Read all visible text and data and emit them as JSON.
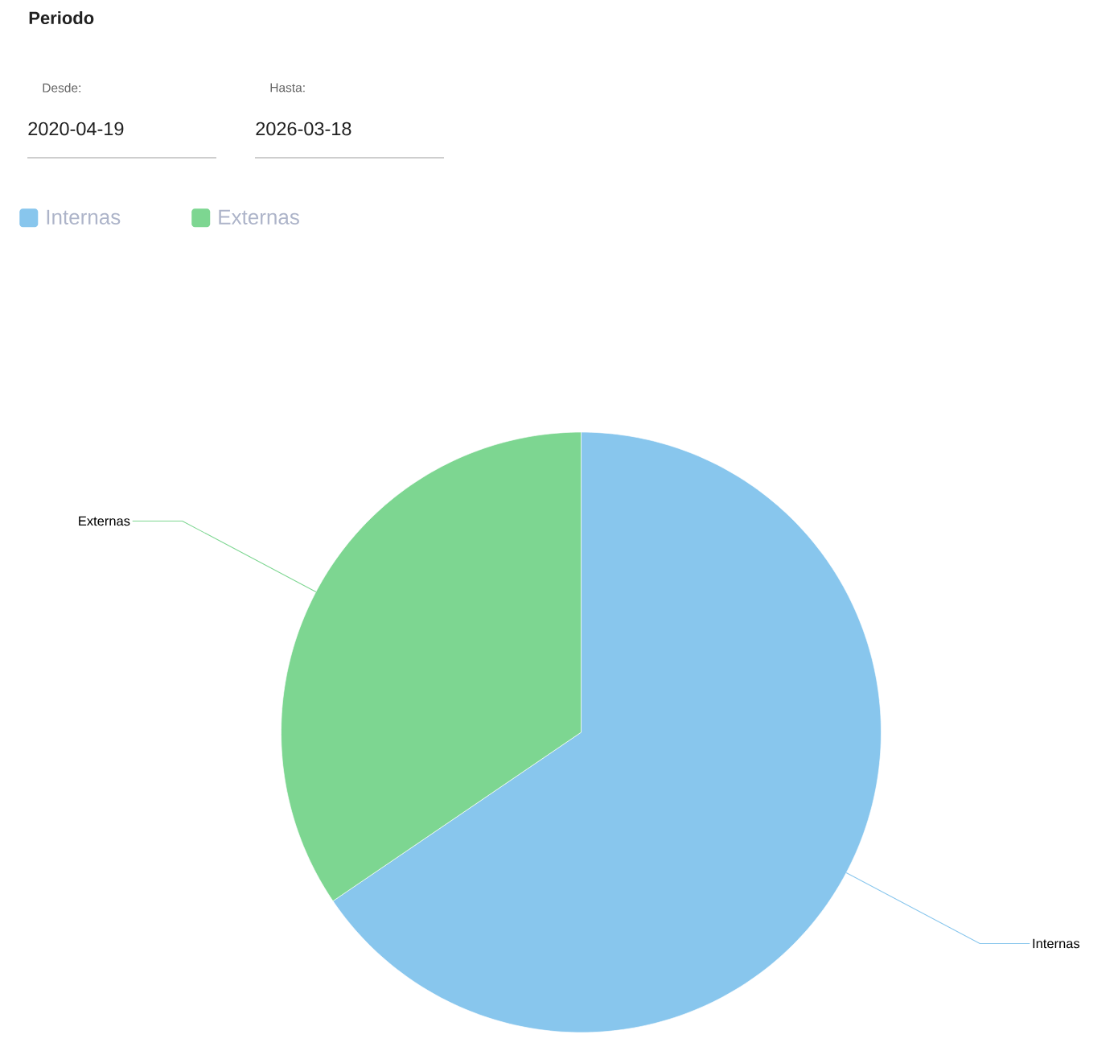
{
  "chart_data": {
    "type": "pie",
    "title": "Periodo",
    "annotations": [
      "Desde:",
      "2020-04-19",
      "Hasta:",
      "2026-03-18"
    ],
    "categories": [
      "Internas",
      "Externas"
    ],
    "values": [
      65.5,
      34.5
    ],
    "colors": [
      "#88c6ed",
      "#7dd691"
    ],
    "legend": "top left"
  }
}
